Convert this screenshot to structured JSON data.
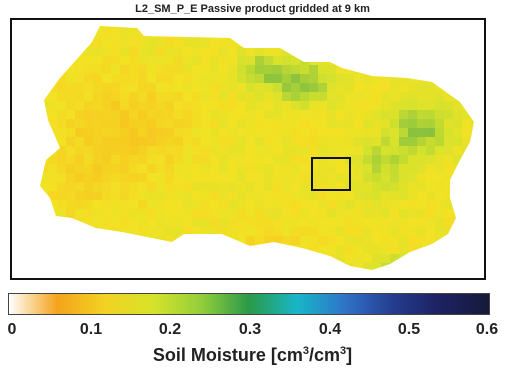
{
  "title": "L2_SM_P_E Passive product gridded at 9 km",
  "map": {
    "variable": "soil moisture",
    "value_range": [
      0,
      0.6
    ],
    "highlight_box": "square study-area outline, center-right of swath"
  },
  "colorbar": {
    "ticks": [
      "0",
      "0.1",
      "0.2",
      "0.3",
      "0.4",
      "0.5",
      "0.6"
    ],
    "label_prefix": "Soil Moisture [cm",
    "label_sup1": "3",
    "label_mid": "/cm",
    "label_sup2": "3",
    "label_suffix": "]",
    "colors": [
      "#ffffff",
      "#f4a31c",
      "#f3d222",
      "#d7e32a",
      "#93ce3a",
      "#2a9a48",
      "#18b6c9",
      "#2f73c8",
      "#243c8e",
      "#1d2160",
      "#151a3a"
    ]
  }
}
